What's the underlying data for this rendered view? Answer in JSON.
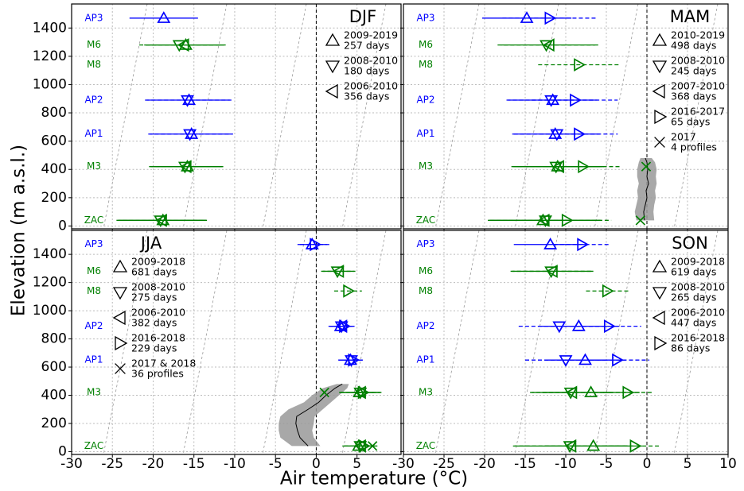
{
  "xlabel": "Air temperature (°C)",
  "ylabel": "Elevation (m a.s.l.)",
  "stations": [
    {
      "name": "AP3",
      "elevation": 1470,
      "color": "#0000ff"
    },
    {
      "name": "M6",
      "elevation": 1280,
      "color": "#008000"
    },
    {
      "name": "M8",
      "elevation": 1140,
      "color": "#008000"
    },
    {
      "name": "AP2",
      "elevation": 890,
      "color": "#0000ff"
    },
    {
      "name": "AP1",
      "elevation": 650,
      "color": "#0000ff"
    },
    {
      "name": "M3",
      "elevation": 420,
      "color": "#008000"
    },
    {
      "name": "ZAC",
      "elevation": 40,
      "color": "#008000"
    }
  ],
  "chart_data": [
    {
      "type": "scatter",
      "title": "DJF",
      "legend": "upper right",
      "xlim": [
        -30,
        10.4
      ],
      "ylim": [
        -20,
        1570
      ],
      "xticks": [
        -30,
        -25,
        -20,
        -15,
        -10,
        -5,
        0,
        5
      ],
      "yticks": [
        0,
        200,
        400,
        600,
        800,
        1000,
        1200,
        1400
      ],
      "xtick_labels": false,
      "ytick_labels": true,
      "grid": true,
      "vline": 0,
      "series": [
        {
          "name": "2009-2019",
          "note": "257 days",
          "marker": "^",
          "values": [
            -18.7,
            -16.0,
            null,
            -15.6,
            -15.3,
            -15.8,
            -18.8
          ],
          "errors": [
            4.2,
            4.9,
            null,
            5.2,
            5.1,
            4.4,
            5.4
          ]
        },
        {
          "name": "2008-2010",
          "note": "180 days",
          "marker": "v",
          "values": [
            null,
            -16.8,
            null,
            -15.8,
            -15.5,
            -16.1,
            -19.1
          ],
          "errors": [
            null,
            4.9,
            null,
            5.2,
            5.1,
            4.4,
            5.4
          ]
        },
        {
          "name": "2006-2010",
          "note": "356 days",
          "marker": "<",
          "values": [
            null,
            -16.2,
            null,
            null,
            null,
            -15.9,
            -18.9
          ],
          "errors": [
            null,
            4.9,
            null,
            null,
            null,
            4.4,
            5.4
          ]
        }
      ]
    },
    {
      "type": "scatter",
      "title": "MAM",
      "legend": "upper right",
      "xlim": [
        -30,
        10
      ],
      "ylim": [
        -20,
        1570
      ],
      "xticks": [
        -30,
        -25,
        -20,
        -15,
        -10,
        -5,
        0,
        5,
        10
      ],
      "yticks": [
        0,
        200,
        400,
        600,
        800,
        1000,
        1200,
        1400
      ],
      "xtick_labels": false,
      "ytick_labels": false,
      "grid": true,
      "vline": 0,
      "series": [
        {
          "name": "2010-2019",
          "note": "498 days",
          "marker": "^",
          "values": [
            -14.8,
            null,
            null,
            -11.6,
            -11.3,
            -11.0,
            -12.8
          ],
          "errors": [
            5.5,
            null,
            null,
            5.5,
            5.3,
            5.5,
            6.8
          ]
        },
        {
          "name": "2008-2010",
          "note": "245 days",
          "marker": "v",
          "values": [
            null,
            -12.4,
            null,
            -11.8,
            -11.1,
            -11.2,
            -12.5
          ],
          "errors": [
            null,
            6.0,
            null,
            5.5,
            5.3,
            5.5,
            6.8
          ]
        },
        {
          "name": "2007-2010",
          "note": "368 days",
          "marker": "<",
          "values": [
            null,
            -12.0,
            null,
            null,
            null,
            -10.8,
            -12.6
          ],
          "errors": [
            null,
            6.0,
            null,
            null,
            null,
            5.5,
            6.8
          ]
        },
        {
          "name": "2016-2017",
          "note": "65 days",
          "marker": ">",
          "values": [
            -12.0,
            null,
            -8.4,
            -8.9,
            -8.4,
            -7.9,
            -9.9
          ],
          "errors": [
            5.8,
            null,
            5.0,
            5.3,
            4.8,
            4.6,
            5.5
          ]
        },
        {
          "name": "2017",
          "note": "4 profiles",
          "marker": "x",
          "values": [
            null,
            null,
            null,
            null,
            null,
            -0.1,
            -0.8
          ]
        }
      ],
      "profile": {
        "elevation": [
          40,
          100,
          150,
          200,
          250,
          300,
          350,
          400,
          450,
          480
        ],
        "values": [
          -0.3,
          -0.4,
          -0.2,
          0.0,
          -0.1,
          0.2,
          0.0,
          0.1,
          0.0,
          -0.2
        ],
        "lower": [
          -1.3,
          -1.5,
          -1.3,
          -1.1,
          -1.2,
          -1.0,
          -1.2,
          -1.2,
          -1.0,
          -0.8
        ],
        "upper": [
          0.9,
          0.8,
          0.9,
          1.1,
          1.0,
          1.2,
          1.1,
          1.2,
          1.0,
          0.6
        ]
      }
    },
    {
      "type": "scatter",
      "title": "JJA",
      "legend": "upper left",
      "xlim": [
        -30,
        10.4
      ],
      "ylim": [
        -20,
        1570
      ],
      "xticks": [
        -30,
        -25,
        -20,
        -15,
        -10,
        -5,
        0,
        5
      ],
      "yticks": [
        0,
        200,
        400,
        600,
        800,
        1000,
        1200,
        1400
      ],
      "xtick_labels": true,
      "ytick_labels": true,
      "grid": true,
      "vline": 0,
      "series": [
        {
          "name": "2009-2018",
          "note": "681 days",
          "marker": "^",
          "values": [
            -0.5,
            null,
            null,
            3.0,
            4.2,
            5.3,
            5.2
          ],
          "errors": [
            1.8,
            null,
            null,
            1.5,
            1.5,
            2.5,
            2.0
          ]
        },
        {
          "name": "2008-2010",
          "note": "275 days",
          "marker": "v",
          "values": [
            null,
            2.6,
            null,
            3.1,
            4.3,
            5.4,
            5.4
          ],
          "errors": [
            null,
            2.0,
            null,
            1.5,
            1.5,
            2.5,
            2.0
          ]
        },
        {
          "name": "2006-2010",
          "note": "382 days",
          "marker": "<",
          "values": [
            null,
            2.8,
            null,
            3.2,
            null,
            5.5,
            5.5
          ],
          "errors": [
            null,
            2.0,
            null,
            1.5,
            null,
            2.5,
            2.0
          ]
        },
        {
          "name": "2016-2018",
          "note": "229 days",
          "marker": ">",
          "values": [
            -0.2,
            null,
            3.9,
            3.4,
            4.5,
            5.7,
            5.8
          ],
          "errors": [
            1.8,
            null,
            1.7,
            1.2,
            1.2,
            1.5,
            1.2
          ]
        },
        {
          "name": "2017 & 2018",
          "note": "36 profiles",
          "marker": "x",
          "values": [
            null,
            null,
            null,
            null,
            null,
            1.0,
            6.9
          ]
        }
      ],
      "profile": {
        "elevation": [
          40,
          100,
          150,
          200,
          250,
          300,
          350,
          400,
          450,
          480
        ],
        "values": [
          -1.0,
          -2.0,
          -2.3,
          -2.5,
          -2.4,
          -1.0,
          0.3,
          1.2,
          2.3,
          3.2
        ],
        "lower": [
          -3.0,
          -4.4,
          -4.6,
          -4.6,
          -4.4,
          -3.4,
          -1.5,
          -0.5,
          0.8,
          2.5
        ],
        "upper": [
          0.5,
          -0.3,
          -0.5,
          -0.3,
          -0.2,
          0.8,
          1.8,
          2.8,
          3.8,
          4.0
        ]
      }
    },
    {
      "type": "scatter",
      "title": "SON",
      "legend": "upper right",
      "xlim": [
        -30,
        10
      ],
      "ylim": [
        -20,
        1570
      ],
      "xticks": [
        -30,
        -25,
        -20,
        -15,
        -10,
        -5,
        0,
        5,
        10
      ],
      "yticks": [
        0,
        200,
        400,
        600,
        800,
        1000,
        1200,
        1400
      ],
      "xtick_labels": true,
      "ytick_labels": false,
      "grid": true,
      "vline": 0,
      "series": [
        {
          "name": "2009-2018",
          "note": "619 days",
          "marker": "^",
          "values": [
            -11.9,
            null,
            null,
            -8.4,
            -7.6,
            -6.9,
            -6.6
          ],
          "errors": [
            4.5,
            null,
            null,
            5.0,
            5.0,
            6.0,
            6.0
          ]
        },
        {
          "name": "2008-2010",
          "note": "265 days",
          "marker": "v",
          "values": [
            null,
            -11.8,
            null,
            -10.8,
            -10.0,
            -9.4,
            -9.5
          ],
          "errors": [
            null,
            5.0,
            null,
            5.0,
            5.0,
            5.0,
            7.0
          ]
        },
        {
          "name": "2006-2010",
          "note": "447 days",
          "marker": "<",
          "values": [
            null,
            -11.6,
            null,
            null,
            null,
            -9.2,
            -9.3
          ],
          "errors": [
            null,
            5.0,
            null,
            null,
            null,
            5.0,
            7.0
          ]
        },
        {
          "name": "2016-2018",
          "note": "86 days",
          "marker": ">",
          "values": [
            -8.0,
            null,
            -4.9,
            -4.7,
            -3.7,
            -2.4,
            -1.5
          ],
          "errors": [
            3.5,
            null,
            2.6,
            4.0,
            4.0,
            3.0,
            3.0
          ]
        }
      ]
    }
  ]
}
